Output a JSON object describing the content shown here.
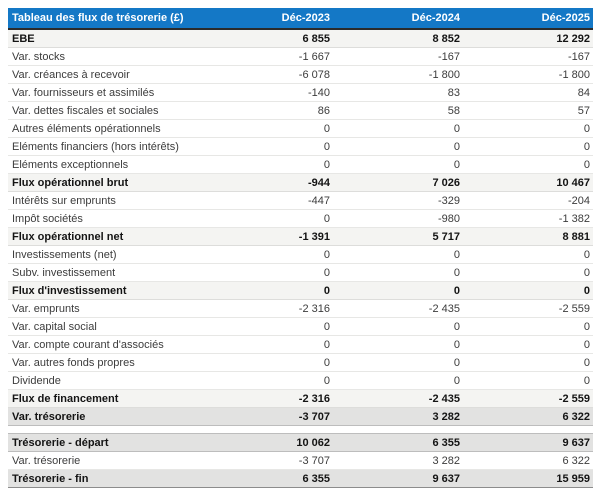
{
  "colors": {
    "header_bg": "#1478C6",
    "header_text": "#FFFFFF",
    "subtotal_bg": "#F4F4F2",
    "total_bg": "#E2E2E1"
  },
  "chart_data": {
    "type": "table",
    "title": "Tableau des flux de trésorerie (£)",
    "columns": [
      "Déc-2023",
      "Déc-2024",
      "Déc-2025"
    ],
    "rows": [
      {
        "label": "EBE",
        "values": [
          "6 855",
          "8 852",
          "12 292"
        ],
        "style": "bold-light"
      },
      {
        "label": "Var. stocks",
        "values": [
          "-1 667",
          "-167",
          "-167"
        ],
        "style": "normal"
      },
      {
        "label": "Var. créances à recevoir",
        "values": [
          "-6 078",
          "-1 800",
          "-1 800"
        ],
        "style": "normal"
      },
      {
        "label": "Var. fournisseurs et assimilés",
        "values": [
          "-140",
          "83",
          "84"
        ],
        "style": "normal"
      },
      {
        "label": "Var. dettes fiscales et sociales",
        "values": [
          "86",
          "58",
          "57"
        ],
        "style": "normal"
      },
      {
        "label": "Autres éléments opérationnels",
        "values": [
          "0",
          "0",
          "0"
        ],
        "style": "normal"
      },
      {
        "label": "Eléments financiers (hors intérêts)",
        "values": [
          "0",
          "0",
          "0"
        ],
        "style": "normal"
      },
      {
        "label": "Eléments exceptionnels",
        "values": [
          "0",
          "0",
          "0"
        ],
        "style": "normal"
      },
      {
        "label": "Flux opérationnel brut",
        "values": [
          "-944",
          "7 026",
          "10 467"
        ],
        "style": "bold-light"
      },
      {
        "label": "Intérêts sur emprunts",
        "values": [
          "-447",
          "-329",
          "-204"
        ],
        "style": "normal"
      },
      {
        "label": "Impôt sociétés",
        "values": [
          "0",
          "-980",
          "-1 382"
        ],
        "style": "normal"
      },
      {
        "label": "Flux opérationnel net",
        "values": [
          "-1 391",
          "5 717",
          "8 881"
        ],
        "style": "bold-light"
      },
      {
        "label": "Investissements (net)",
        "values": [
          "0",
          "0",
          "0"
        ],
        "style": "normal"
      },
      {
        "label": "Subv. investissement",
        "values": [
          "0",
          "0",
          "0"
        ],
        "style": "normal"
      },
      {
        "label": "Flux d'investissement",
        "values": [
          "0",
          "0",
          "0"
        ],
        "style": "bold-light"
      },
      {
        "label": "Var. emprunts",
        "values": [
          "-2 316",
          "-2 435",
          "-2 559"
        ],
        "style": "normal"
      },
      {
        "label": "Var. capital social",
        "values": [
          "0",
          "0",
          "0"
        ],
        "style": "normal"
      },
      {
        "label": "Var. compte courant d'associés",
        "values": [
          "0",
          "0",
          "0"
        ],
        "style": "normal"
      },
      {
        "label": "Var. autres fonds propres",
        "values": [
          "0",
          "0",
          "0"
        ],
        "style": "normal"
      },
      {
        "label": "Dividende",
        "values": [
          "0",
          "0",
          "0"
        ],
        "style": "normal"
      },
      {
        "label": "Flux de financement",
        "values": [
          "-2 316",
          "-2 435",
          "-2 559"
        ],
        "style": "bold-light"
      },
      {
        "label": "Var. trésorerie",
        "values": [
          "-3 707",
          "3 282",
          "6 322"
        ],
        "style": "bold-gray"
      },
      {
        "label": "",
        "values": [
          "",
          "",
          ""
        ],
        "style": "spacer"
      },
      {
        "label": "Trésorerie - départ",
        "values": [
          "10 062",
          "6 355",
          "9 637"
        ],
        "style": "bold-gray"
      },
      {
        "label": "Var. trésorerie",
        "values": [
          "-3 707",
          "3 282",
          "6 322"
        ],
        "style": "normal"
      },
      {
        "label": "Trésorerie - fin",
        "values": [
          "6 355",
          "9 637",
          "15 959"
        ],
        "style": "bold-gray"
      }
    ]
  }
}
